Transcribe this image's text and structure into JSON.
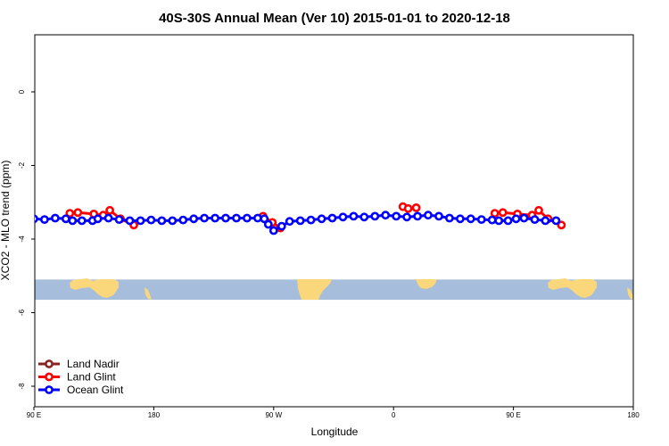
{
  "chart_data": {
    "type": "line",
    "title": "40S-30S Annual Mean (Ver 10)   2015-01-01 to 2020-12-18",
    "xlabel": "Longitude",
    "ylabel": "XCO2 - MLO trend (ppm)",
    "xlim": [
      90,
      450
    ],
    "ylim": [
      -8,
      1
    ],
    "x_ticks": [
      {
        "value": 90,
        "label": "90 E"
      },
      {
        "value": 180,
        "label": "180"
      },
      {
        "value": 270,
        "label": "90 W"
      },
      {
        "value": 360,
        "label": "0"
      },
      {
        "value": 450,
        "label": "90 E"
      },
      {
        "value": 540,
        "label": "180"
      }
    ],
    "y_ticks": [
      {
        "value": 0,
        "label": "0"
      },
      {
        "value": -2,
        "label": "-2"
      },
      {
        "value": -4,
        "label": "-4"
      },
      {
        "value": -6,
        "label": "-6"
      },
      {
        "value": -8,
        "label": "-8"
      }
    ],
    "grid": false,
    "legend_position": "bottom-left",
    "background_map": {
      "ocean_color": "#a6bddb",
      "land_color": "#f9d77a",
      "y_range": [
        -5.65,
        -5.1
      ]
    },
    "series": [
      {
        "name": "Land Nadir",
        "color": "#8b2323",
        "segments": []
      },
      {
        "name": "Land Glint",
        "color": "#ff0000",
        "segments": [
          [
            {
              "x": 117,
              "y": -3.3
            },
            {
              "x": 123,
              "y": -3.28
            },
            {
              "x": 135,
              "y": -3.32
            },
            {
              "x": 142,
              "y": -3.35
            },
            {
              "x": 147,
              "y": -3.22
            },
            {
              "x": 155,
              "y": -3.45
            },
            {
              "x": 165,
              "y": -3.62
            }
          ],
          [
            {
              "x": 262,
              "y": -3.38
            },
            {
              "x": 269,
              "y": -3.55
            },
            {
              "x": 275,
              "y": -3.7
            }
          ],
          [
            {
              "x": 367,
              "y": -3.12
            },
            {
              "x": 371,
              "y": -3.17
            },
            {
              "x": 377,
              "y": -3.15
            }
          ],
          [
            {
              "x": 436,
              "y": -3.3
            },
            {
              "x": 442,
              "y": -3.28
            },
            {
              "x": 453,
              "y": -3.32
            },
            {
              "x": 464,
              "y": -3.35
            },
            {
              "x": 469,
              "y": -3.22
            },
            {
              "x": 476,
              "y": -3.45
            },
            {
              "x": 486,
              "y": -3.62
            }
          ]
        ]
      },
      {
        "name": "Ocean Glint",
        "color": "#0000ff",
        "segments": [
          [
            {
              "x": 90,
              "y": -3.45
            },
            {
              "x": 98,
              "y": -3.47
            },
            {
              "x": 106,
              "y": -3.43
            },
            {
              "x": 114,
              "y": -3.45
            },
            {
              "x": 119,
              "y": -3.5
            },
            {
              "x": 126,
              "y": -3.5
            },
            {
              "x": 134,
              "y": -3.5
            },
            {
              "x": 138,
              "y": -3.45
            },
            {
              "x": 146,
              "y": -3.43
            },
            {
              "x": 154,
              "y": -3.47
            },
            {
              "x": 162,
              "y": -3.5
            },
            {
              "x": 170,
              "y": -3.5
            },
            {
              "x": 178,
              "y": -3.48
            },
            {
              "x": 186,
              "y": -3.5
            },
            {
              "x": 194,
              "y": -3.5
            },
            {
              "x": 202,
              "y": -3.48
            },
            {
              "x": 210,
              "y": -3.45
            },
            {
              "x": 218,
              "y": -3.43
            },
            {
              "x": 226,
              "y": -3.43
            },
            {
              "x": 234,
              "y": -3.43
            },
            {
              "x": 242,
              "y": -3.43
            },
            {
              "x": 250,
              "y": -3.43
            },
            {
              "x": 258,
              "y": -3.43
            },
            {
              "x": 263,
              "y": -3.45
            },
            {
              "x": 266,
              "y": -3.6
            },
            {
              "x": 270,
              "y": -3.77
            },
            {
              "x": 276,
              "y": -3.65
            },
            {
              "x": 282,
              "y": -3.52
            },
            {
              "x": 290,
              "y": -3.5
            },
            {
              "x": 298,
              "y": -3.48
            },
            {
              "x": 306,
              "y": -3.45
            },
            {
              "x": 314,
              "y": -3.43
            },
            {
              "x": 322,
              "y": -3.4
            },
            {
              "x": 330,
              "y": -3.38
            },
            {
              "x": 338,
              "y": -3.4
            },
            {
              "x": 346,
              "y": -3.38
            },
            {
              "x": 354,
              "y": -3.35
            },
            {
              "x": 362,
              "y": -3.38
            },
            {
              "x": 370,
              "y": -3.4
            },
            {
              "x": 378,
              "y": -3.38
            },
            {
              "x": 386,
              "y": -3.35
            },
            {
              "x": 394,
              "y": -3.38
            },
            {
              "x": 402,
              "y": -3.43
            },
            {
              "x": 410,
              "y": -3.45
            },
            {
              "x": 418,
              "y": -3.45
            },
            {
              "x": 426,
              "y": -3.47
            },
            {
              "x": 434,
              "y": -3.48
            },
            {
              "x": 439,
              "y": -3.5
            },
            {
              "x": 446,
              "y": -3.5
            },
            {
              "x": 452,
              "y": -3.45
            },
            {
              "x": 458,
              "y": -3.43
            },
            {
              "x": 466,
              "y": -3.47
            },
            {
              "x": 474,
              "y": -3.5
            },
            {
              "x": 482,
              "y": -3.5
            }
          ]
        ]
      }
    ]
  }
}
